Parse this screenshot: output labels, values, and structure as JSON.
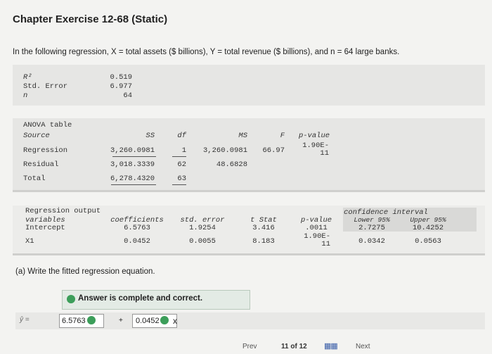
{
  "header": {
    "title": "Chapter Exercise 12-68 (Static)",
    "intro": "In the following regression, X = total assets ($ billions), Y = total revenue ($ billions), and n = 64 large banks."
  },
  "summary": {
    "rows": [
      [
        "R²",
        "0.519"
      ],
      [
        "Std. Error",
        "6.977"
      ],
      [
        "n",
        "64"
      ]
    ]
  },
  "anova": {
    "caption": "ANOVA table",
    "columns": [
      "Source",
      "SS",
      "df",
      "MS",
      "F",
      "p-value"
    ],
    "rows": [
      [
        "Regression",
        "3,260.0981",
        "1",
        "3,260.0981",
        "66.97",
        "1.90E-11"
      ],
      [
        "Residual",
        "3,018.3339",
        "62",
        "48.6828"
      ],
      [
        "Total",
        "6,278.4320",
        "63"
      ]
    ]
  },
  "regression": {
    "caption": "Regression output",
    "ci_caption": "confidence interval",
    "columns": [
      "variables",
      "coefficients",
      "std. error",
      "t Stat",
      "p-value",
      "Lower 95%",
      "Upper 95%"
    ],
    "rows": [
      [
        "Intercept",
        "6.5763",
        "1.9254",
        "3.416",
        ".0011",
        "2.7275",
        "10.4252"
      ],
      [
        "X1",
        "0.0452",
        "0.0055",
        "8.183",
        "1.90E-11",
        "0.0342",
        "0.0563"
      ]
    ]
  },
  "answer": {
    "question": "(a) Write the fitted regression equation.",
    "status": "Answer is complete and correct.",
    "lhs": "ŷ =",
    "intercept": "6.5763",
    "plus": "+",
    "slope": "0.0452",
    "variable": "x"
  },
  "footer": {
    "prev": "Prev",
    "page": "11 of 12",
    "next": "Next"
  }
}
